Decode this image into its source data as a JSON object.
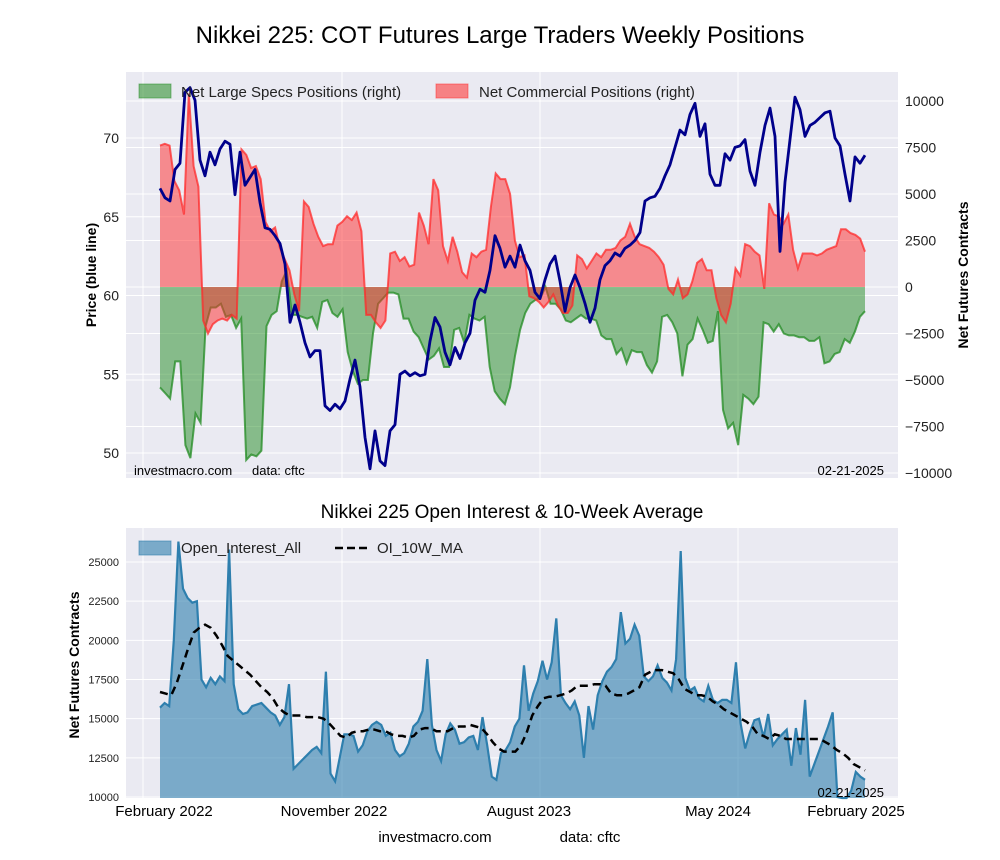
{
  "chart_data": [
    {
      "type": "line",
      "title": "Nikkei 225: COT Futures Large Traders Weekly Positions",
      "ylabel_left": "Price (blue line)",
      "ylabel_right": "Net Futures Contracts",
      "ylim_left": [
        48.5,
        74.5
      ],
      "ylim_right": [
        -10000,
        11000
      ],
      "yticks_left": [
        "50",
        "55",
        "60",
        "65",
        "70"
      ],
      "yticks_right": [
        "−10000",
        "−7500",
        "−5000",
        "−2500",
        "0",
        "2500",
        "5000",
        "7500",
        "10000"
      ],
      "grid": true,
      "legend_position": "top-left",
      "legend": [
        "Net Large Specs Positions (right)",
        "Net Commercial Positions (right)"
      ],
      "annotations": {
        "source": "investmacro.com",
        "data": "data: cftc",
        "date": "02-21-2025"
      },
      "x_start": "2022-02",
      "x_end": "2025-02-21",
      "series": [
        {
          "name": "Price",
          "color": "#00008b",
          "axis": "left",
          "values": [
            66.8,
            66.2,
            66.0,
            68.0,
            68.4,
            72.9,
            73.2,
            72.4,
            68.6,
            67.6,
            69.1,
            68.3,
            69.3,
            69.8,
            69.6,
            66.4,
            69.1,
            67.0,
            67.5,
            68.0,
            65.9,
            64.3,
            64.2,
            63.8,
            63.3,
            62.0,
            58.3,
            59.4,
            58.3,
            57.0,
            56.1,
            56.5,
            56.5,
            53.0,
            52.7,
            53.1,
            52.8,
            53.3,
            54.7,
            55.9,
            54.2,
            51.0,
            49.0,
            51.4,
            49.5,
            49.2,
            51.4,
            51.8,
            55.0,
            55.2,
            54.9,
            55.1,
            54.9,
            55.0,
            57.1,
            58.6,
            58.0,
            56.4,
            55.6,
            56.7,
            56.0,
            57.0,
            57.6,
            59.7,
            60.4,
            60.2,
            61.6,
            63.8,
            63.0,
            61.8,
            62.5,
            61.8,
            63.2,
            62.2,
            61.6,
            60.2,
            59.8,
            61.0,
            62.0,
            62.5,
            60.9,
            59.0,
            60.5,
            61.3,
            60.5,
            59.5,
            58.3,
            59.2,
            61.0,
            61.9,
            62.2,
            62.7,
            62.5,
            63.0,
            63.2,
            63.5,
            64.0,
            66.0,
            66.2,
            66.3,
            66.8,
            67.6,
            68.3,
            69.4,
            70.5,
            70.2,
            71.5,
            72.2,
            70.1,
            70.9,
            67.7,
            67.0,
            67.0,
            69.0,
            68.6,
            69.4,
            69.5,
            69.9,
            67.9,
            67.0,
            69.1,
            70.8,
            71.9,
            70.1,
            62.8,
            67.2,
            69.9,
            72.6,
            71.8,
            70.1,
            70.8,
            71.0,
            71.3,
            71.6,
            71.7,
            70.0,
            69.5,
            67.7,
            66.0,
            68.8,
            68.4,
            68.9
          ]
        },
        {
          "name": "Net Large Specs Positions (right)",
          "color": "#228b22",
          "axis": "right",
          "values": [
            -5400,
            -5700,
            -6000,
            -4000,
            -4000,
            -8500,
            -9200,
            -6800,
            -7300,
            -2100,
            -1100,
            -1100,
            -900,
            -1600,
            -1500,
            -2200,
            -1700,
            -9300,
            -9000,
            -9100,
            -8800,
            -2100,
            -1500,
            -1300,
            300,
            900,
            -1500,
            -1500,
            -1600,
            -1700,
            -1600,
            -2200,
            -800,
            -700,
            -1400,
            -1600,
            -1200,
            -3500,
            -4500,
            -5200,
            -5000,
            -5000,
            -2500,
            -900,
            -600,
            -300,
            -300,
            -400,
            -1700,
            -1700,
            -2400,
            -2700,
            -3300,
            -3900,
            -3700,
            -3300,
            -4300,
            -4300,
            -2300,
            -2200,
            -3000,
            -1500,
            -1700,
            -1800,
            -1600,
            -4300,
            -5600,
            -6000,
            -6300,
            -5400,
            -3700,
            -2300,
            -1400,
            -900,
            -700,
            -600,
            0,
            -900,
            -900,
            -1200,
            -1800,
            -1900,
            -1700,
            -1500,
            -1700,
            -1700,
            -1800,
            -2600,
            -2800,
            -2800,
            -3600,
            -3300,
            -4100,
            -3400,
            -3500,
            -3500,
            -4200,
            -4600,
            -4000,
            -1600,
            -1500,
            -1900,
            -2500,
            -4800,
            -3100,
            -2800,
            -1700,
            -2300,
            -3000,
            -2900,
            -1300,
            -6600,
            -7600,
            -7300,
            -8500,
            -5800,
            -6000,
            -6300,
            -5900,
            -1900,
            -2000,
            -2400,
            -2000,
            -2500,
            -2600,
            -2600,
            -2700,
            -2700,
            -2900,
            -2900,
            -2700,
            -4100,
            -4000,
            -3600,
            -3500,
            -2800,
            -3000,
            -2400,
            -1600,
            -1300
          ]
        },
        {
          "name": "Net Commercial Positions (right)",
          "color": "#ff2a2a",
          "axis": "right",
          "values": [
            7600,
            7700,
            7600,
            5700,
            5200,
            3900,
            10400,
            6500,
            5400,
            -1800,
            -2500,
            -2000,
            -1800,
            -1700,
            -1800,
            -1500,
            -1700,
            7400,
            7100,
            6400,
            6500,
            5800,
            3500,
            3000,
            3200,
            2100,
            1500,
            900,
            -400,
            -1300,
            4600,
            4300,
            3400,
            2700,
            2200,
            2300,
            2300,
            3300,
            3500,
            3800,
            3600,
            4000,
            3000,
            -1500,
            -1500,
            -1900,
            -2200,
            -1800,
            1800,
            1900,
            1400,
            1600,
            1100,
            1200,
            4000,
            3300,
            2300,
            5800,
            5200,
            2200,
            1400,
            2700,
            1900,
            800,
            500,
            1800,
            1600,
            1900,
            2000,
            4300,
            6100,
            5800,
            5800,
            5000,
            2500,
            1600,
            1700,
            -500,
            -600,
            -800,
            -1100,
            -800,
            -400,
            -1000,
            -1400,
            -1400,
            -1000,
            1700,
            1500,
            1000,
            1400,
            1800,
            1600,
            2000,
            2000,
            2100,
            2500,
            2700,
            3400,
            2700,
            2300,
            2200,
            2100,
            1900,
            1600,
            1200,
            -100,
            -400,
            400,
            -600,
            -400,
            300,
            1300,
            1500,
            900,
            900,
            -600,
            -1500,
            -1900,
            -900,
            1000,
            600,
            2300,
            2200,
            1900,
            1700,
            -100,
            4500,
            3900,
            3800,
            3400,
            3900,
            2000,
            1000,
            1800,
            1800,
            1800,
            1700,
            1800,
            2000,
            2100,
            2200,
            3100,
            3100,
            2900,
            2800,
            2600,
            1900
          ]
        }
      ]
    },
    {
      "type": "area",
      "title": "Nikkei 225 Open Interest & 10-Week Average",
      "ylabel": "Net Futures Contracts",
      "xlabel": "",
      "ylim": [
        10000,
        26700
      ],
      "yticks": [
        "10000",
        "12500",
        "15000",
        "17500",
        "20000",
        "22500",
        "25000"
      ],
      "xticks": [
        "February 2022",
        "November 2022",
        "August 2023",
        "May 2024",
        "February 2025"
      ],
      "grid": true,
      "legend_position": "top-left",
      "legend": [
        "Open_Interest_All",
        "OI_10W_MA"
      ],
      "annotations": {
        "date": "02-21-2025"
      },
      "series": [
        {
          "name": "Open_Interest_All",
          "color": "#2e7fae",
          "style": "filled-area",
          "values": [
            15700,
            16000,
            15800,
            20000,
            26300,
            23300,
            22700,
            22400,
            22500,
            17500,
            17000,
            17600,
            17200,
            17700,
            17400,
            25800,
            17200,
            15600,
            15300,
            15400,
            15800,
            15900,
            16000,
            15700,
            15400,
            15200,
            14600,
            15100,
            17200,
            11800,
            12100,
            12400,
            12700,
            13000,
            13200,
            12800,
            18000,
            11500,
            11000,
            12500,
            14000,
            14000,
            13900,
            12900,
            13300,
            14200,
            14600,
            14800,
            14600,
            13900,
            14100,
            13000,
            12600,
            12800,
            13400,
            14500,
            14800,
            15500,
            18800,
            14600,
            13000,
            12300,
            14000,
            14700,
            14300,
            13400,
            13500,
            13800,
            13900,
            13000,
            15100,
            13300,
            11300,
            11100,
            12800,
            13000,
            13500,
            14500,
            15000,
            18400,
            15500,
            16600,
            17400,
            18700,
            17500,
            18600,
            21400,
            16500,
            16000,
            15600,
            16100,
            15200,
            12500,
            15800,
            14300,
            16500,
            17400,
            18000,
            18300,
            18800,
            21800,
            19800,
            20100,
            21000,
            20300,
            17700,
            17400,
            17700,
            18400,
            17600,
            17300,
            16800,
            18800,
            25700,
            17600,
            16800,
            17000,
            16300,
            16100,
            17100,
            16200,
            16000,
            16200,
            16200,
            16000,
            18600,
            14700,
            13100,
            14100,
            14900,
            15000,
            13800,
            15300,
            13300,
            13700,
            14000,
            14300,
            12000,
            14400,
            12700,
            16200,
            11300,
            12100,
            12900,
            13700,
            14500,
            15400,
            10000,
            9800,
            9700,
            10400,
            11600,
            11300,
            11100
          ]
        },
        {
          "name": "OI_10W_MA",
          "color": "#000000",
          "style": "dashed-line",
          "values": [
            16700,
            16600,
            16500,
            17300,
            18400,
            19500,
            20500,
            20800,
            21000,
            20800,
            20300,
            19700,
            19000,
            18700,
            18400,
            18100,
            17800,
            17400,
            17000,
            16700,
            16300,
            15700,
            15400,
            15200,
            15200,
            15200,
            15100,
            15100,
            15100,
            15000,
            14700,
            14300,
            13900,
            13800,
            14100,
            14200,
            14200,
            14300,
            14300,
            14200,
            14200,
            14000,
            13900,
            13900,
            13800,
            13900,
            14300,
            14400,
            14400,
            14200,
            14200,
            14200,
            14400,
            14500,
            14500,
            14600,
            14500,
            14400,
            14000,
            13500,
            13100,
            12900,
            12900,
            12900,
            13300,
            14100,
            15200,
            15800,
            16300,
            16400,
            16400,
            16500,
            16600,
            16800,
            17100,
            17100,
            17100,
            17200,
            17200,
            17100,
            16600,
            16500,
            16500,
            16600,
            16800,
            17000,
            17800,
            18000,
            18100,
            18100,
            18000,
            17900,
            17500,
            16900,
            16700,
            16500,
            16500,
            16400,
            16100,
            15900,
            15600,
            15400,
            15200,
            15000,
            14800,
            14500,
            14000,
            13900,
            13700,
            14000,
            13900,
            13700,
            13700,
            13700,
            13700,
            13700,
            13700,
            13700,
            13500,
            13300,
            13000,
            12800,
            12500,
            12100,
            11900,
            11700
          ]
        }
      ]
    }
  ],
  "footer": {
    "source": "investmacro.com",
    "data": "data: cftc"
  }
}
